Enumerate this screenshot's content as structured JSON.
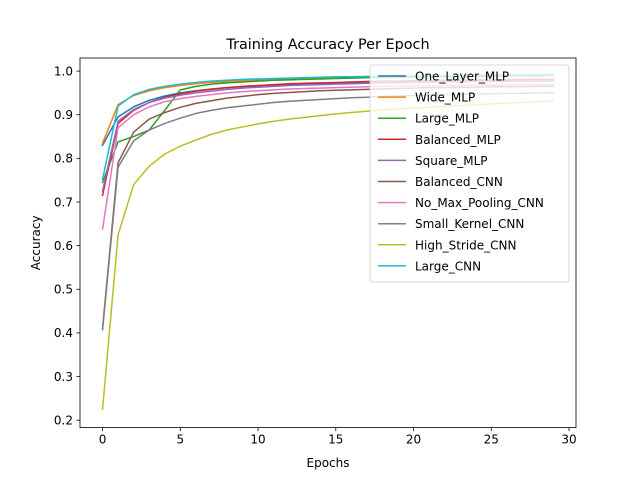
{
  "chart_data": {
    "type": "line",
    "title": "Training Accuracy Per Epoch",
    "xlabel": "Epochs",
    "ylabel": "Accuracy",
    "xlim": [
      -1.45,
      30.45
    ],
    "ylim": [
      0.183,
      1.03
    ],
    "xticks": [
      0,
      5,
      10,
      15,
      20,
      25,
      30
    ],
    "yticks": [
      0.2,
      0.3,
      0.4,
      0.5,
      0.6,
      0.7,
      0.8,
      0.9,
      1.0
    ],
    "xtick_labels": [
      "0",
      "5",
      "10",
      "15",
      "20",
      "25",
      "30"
    ],
    "ytick_labels": [
      "0.2",
      "0.3",
      "0.4",
      "0.5",
      "0.6",
      "0.7",
      "0.8",
      "0.9",
      "1.0"
    ],
    "grid": false,
    "legend_position": "top-right",
    "x": [
      0,
      1,
      2,
      3,
      4,
      5,
      6,
      7,
      8,
      9,
      10,
      11,
      12,
      13,
      14,
      15,
      16,
      17,
      18,
      19,
      20,
      21,
      22,
      23,
      24,
      25,
      26,
      27,
      28,
      29
    ],
    "series": [
      {
        "name": "One_Layer_MLP",
        "color": "#1f77b4",
        "values": [
          0.83,
          0.895,
          0.918,
          0.933,
          0.943,
          0.95,
          0.955,
          0.959,
          0.962,
          0.964,
          0.966,
          0.968,
          0.969,
          0.97,
          0.971,
          0.972,
          0.973,
          0.974,
          0.975,
          0.975,
          0.976,
          0.976,
          0.977,
          0.977,
          0.977,
          0.978,
          0.978,
          0.978,
          0.979,
          0.979
        ]
      },
      {
        "name": "Wide_MLP",
        "color": "#ff7f0e",
        "values": [
          0.835,
          0.923,
          0.944,
          0.955,
          0.962,
          0.967,
          0.971,
          0.974,
          0.976,
          0.978,
          0.98,
          0.981,
          0.982,
          0.983,
          0.984,
          0.985,
          0.986,
          0.986,
          0.987,
          0.987,
          0.988,
          0.988,
          0.989,
          0.989,
          0.989,
          0.99,
          0.99,
          0.99,
          0.99,
          0.991
        ]
      },
      {
        "name": "Large_MLP",
        "color": "#2ca02c",
        "values": [
          0.745,
          0.838,
          0.85,
          0.865,
          0.91,
          0.957,
          0.965,
          0.97,
          0.973,
          0.975,
          0.977,
          0.979,
          0.98,
          0.981,
          0.982,
          0.983,
          0.984,
          0.985,
          0.985,
          0.986,
          0.986,
          0.987,
          0.987,
          0.988,
          0.988,
          0.988,
          0.989,
          0.989,
          0.989,
          0.99
        ]
      },
      {
        "name": "Balanced_MLP",
        "color": "#d62728",
        "values": [
          0.715,
          0.88,
          0.91,
          0.928,
          0.94,
          0.948,
          0.954,
          0.958,
          0.962,
          0.965,
          0.967,
          0.969,
          0.971,
          0.972,
          0.973,
          0.974,
          0.975,
          0.976,
          0.977,
          0.977,
          0.978,
          0.978,
          0.979,
          0.979,
          0.98,
          0.98,
          0.98,
          0.981,
          0.981,
          0.981
        ]
      },
      {
        "name": "Square_MLP",
        "color": "#9467bd",
        "values": [
          0.725,
          0.885,
          0.912,
          0.928,
          0.938,
          0.945,
          0.95,
          0.954,
          0.958,
          0.961,
          0.963,
          0.965,
          0.967,
          0.968,
          0.969,
          0.97,
          0.971,
          0.972,
          0.973,
          0.973,
          0.974,
          0.974,
          0.975,
          0.975,
          0.976,
          0.976,
          0.976,
          0.977,
          0.977,
          0.977
        ]
      },
      {
        "name": "Balanced_CNN",
        "color": "#8c564b",
        "values": [
          0.41,
          0.79,
          0.86,
          0.89,
          0.905,
          0.917,
          0.926,
          0.932,
          0.938,
          0.942,
          0.946,
          0.949,
          0.951,
          0.953,
          0.955,
          0.956,
          0.957,
          0.958,
          0.959,
          0.96,
          0.961,
          0.962,
          0.962,
          0.963,
          0.963,
          0.964,
          0.964,
          0.964,
          0.965,
          0.965
        ]
      },
      {
        "name": "No_Max_Pooling_CNN",
        "color": "#e377c2",
        "values": [
          0.638,
          0.87,
          0.9,
          0.918,
          0.93,
          0.937,
          0.942,
          0.946,
          0.95,
          0.953,
          0.955,
          0.957,
          0.959,
          0.96,
          0.961,
          0.962,
          0.963,
          0.964,
          0.965,
          0.965,
          0.966,
          0.966,
          0.967,
          0.967,
          0.968,
          0.968,
          0.968,
          0.969,
          0.969,
          0.969
        ]
      },
      {
        "name": "Small_Kernel_CNN",
        "color": "#7f7f7f",
        "values": [
          0.407,
          0.78,
          0.84,
          0.865,
          0.88,
          0.892,
          0.903,
          0.91,
          0.916,
          0.92,
          0.924,
          0.928,
          0.931,
          0.933,
          0.935,
          0.937,
          0.939,
          0.94,
          0.942,
          0.943,
          0.944,
          0.945,
          0.946,
          0.947,
          0.948,
          0.948,
          0.949,
          0.949,
          0.95,
          0.95
        ]
      },
      {
        "name": "High_Stride_CNN",
        "color": "#bcbd22",
        "values": [
          0.225,
          0.625,
          0.74,
          0.782,
          0.81,
          0.828,
          0.842,
          0.855,
          0.865,
          0.872,
          0.879,
          0.885,
          0.89,
          0.894,
          0.898,
          0.902,
          0.905,
          0.908,
          0.911,
          0.913,
          0.915,
          0.917,
          0.919,
          0.921,
          0.923,
          0.925,
          0.927,
          0.928,
          0.93,
          0.932
        ]
      },
      {
        "name": "Large_CNN",
        "color": "#17becf",
        "values": [
          0.752,
          0.92,
          0.946,
          0.958,
          0.965,
          0.97,
          0.974,
          0.977,
          0.979,
          0.981,
          0.982,
          0.983,
          0.984,
          0.985,
          0.986,
          0.987,
          0.987,
          0.988,
          0.988,
          0.989,
          0.989,
          0.99,
          0.99,
          0.99,
          0.991,
          0.991,
          0.991,
          0.991,
          0.992,
          0.992
        ]
      }
    ]
  }
}
